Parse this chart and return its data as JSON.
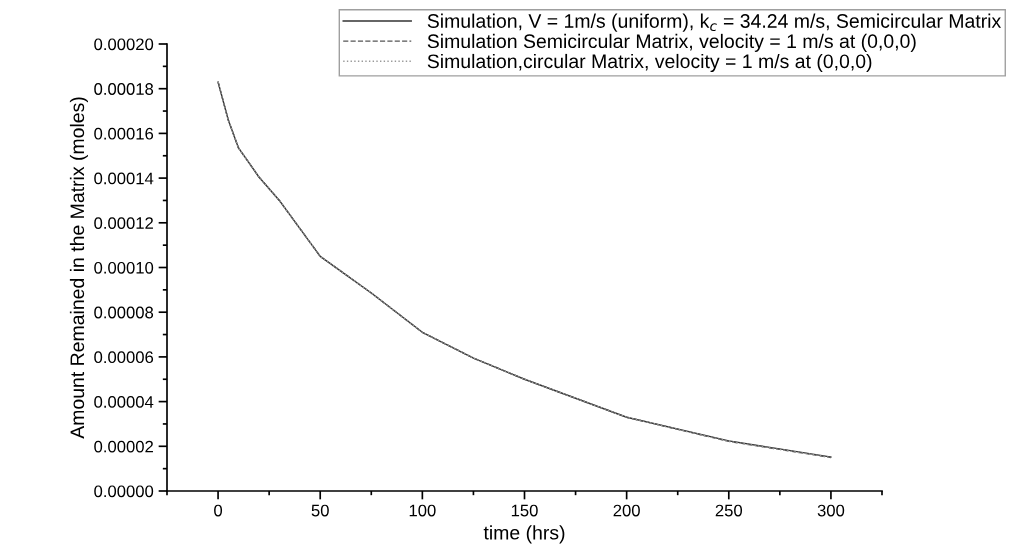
{
  "chart_data": {
    "type": "line",
    "xlabel": "time (hrs)",
    "ylabel": "Amount Remained in the Matrix (moles)",
    "x": [
      0,
      5,
      10,
      20,
      30,
      50,
      75,
      100,
      125,
      150,
      200,
      250,
      300
    ],
    "series": [
      {
        "name": "Simulation, V = 1m/s (uniform), k$_{c}$ = 34.24 m/s, Semicircular Matrix",
        "color": "#333333",
        "line_style": "solid",
        "values": [
          0.000183,
          0.000166,
          0.0001535,
          0.0001405,
          0.00013,
          0.000105,
          8.86e-05,
          7.1e-05,
          5.95e-05,
          5e-05,
          3.3e-05,
          2.24e-05,
          1.52e-05
        ]
      },
      {
        "name": "Simulation Semicircular Matrix, velocity = 1 m/s at (0,0,0)",
        "color": "#555555",
        "line_style": "dashed",
        "values": [
          0.000183,
          0.000166,
          0.0001535,
          0.0001405,
          0.00013,
          0.000105,
          8.86e-05,
          7.1e-05,
          5.95e-05,
          5e-05,
          3.3e-05,
          2.22e-05,
          1.5e-05
        ]
      },
      {
        "name": "Simulation,circular Matrix, velocity = 1 m/s at (0,0,0)",
        "color": "#999999",
        "line_style": "dotted",
        "values": [
          0.000183,
          0.000166,
          0.0001535,
          0.0001405,
          0.00013,
          0.000105,
          8.86e-05,
          7.1e-05,
          5.95e-05,
          5e-05,
          3.3e-05,
          2.22e-05,
          1.5e-05
        ]
      }
    ],
    "xlim": [
      -25,
      325
    ],
    "xticks": [
      0,
      50,
      100,
      150,
      200,
      250,
      300
    ],
    "ylim": [
      0,
      0.0002
    ],
    "yticks": [
      {
        "value": 0,
        "label": "0.00000"
      },
      {
        "value": 2e-05,
        "label": "0.00002"
      },
      {
        "value": 4e-05,
        "label": "0.00004"
      },
      {
        "value": 6e-05,
        "label": "0.00006"
      },
      {
        "value": 8e-05,
        "label": "0.00008"
      },
      {
        "value": 0.0001,
        "label": "0.00010"
      },
      {
        "value": 0.00012,
        "label": "0.00012"
      },
      {
        "value": 0.00014,
        "label": "0.00014"
      },
      {
        "value": 0.00016,
        "label": "0.00016"
      },
      {
        "value": 0.00018,
        "label": "0.00018"
      },
      {
        "value": 0.0002,
        "label": "0.00020"
      }
    ],
    "grid": false,
    "legend": "top right",
    "marker": "none"
  }
}
